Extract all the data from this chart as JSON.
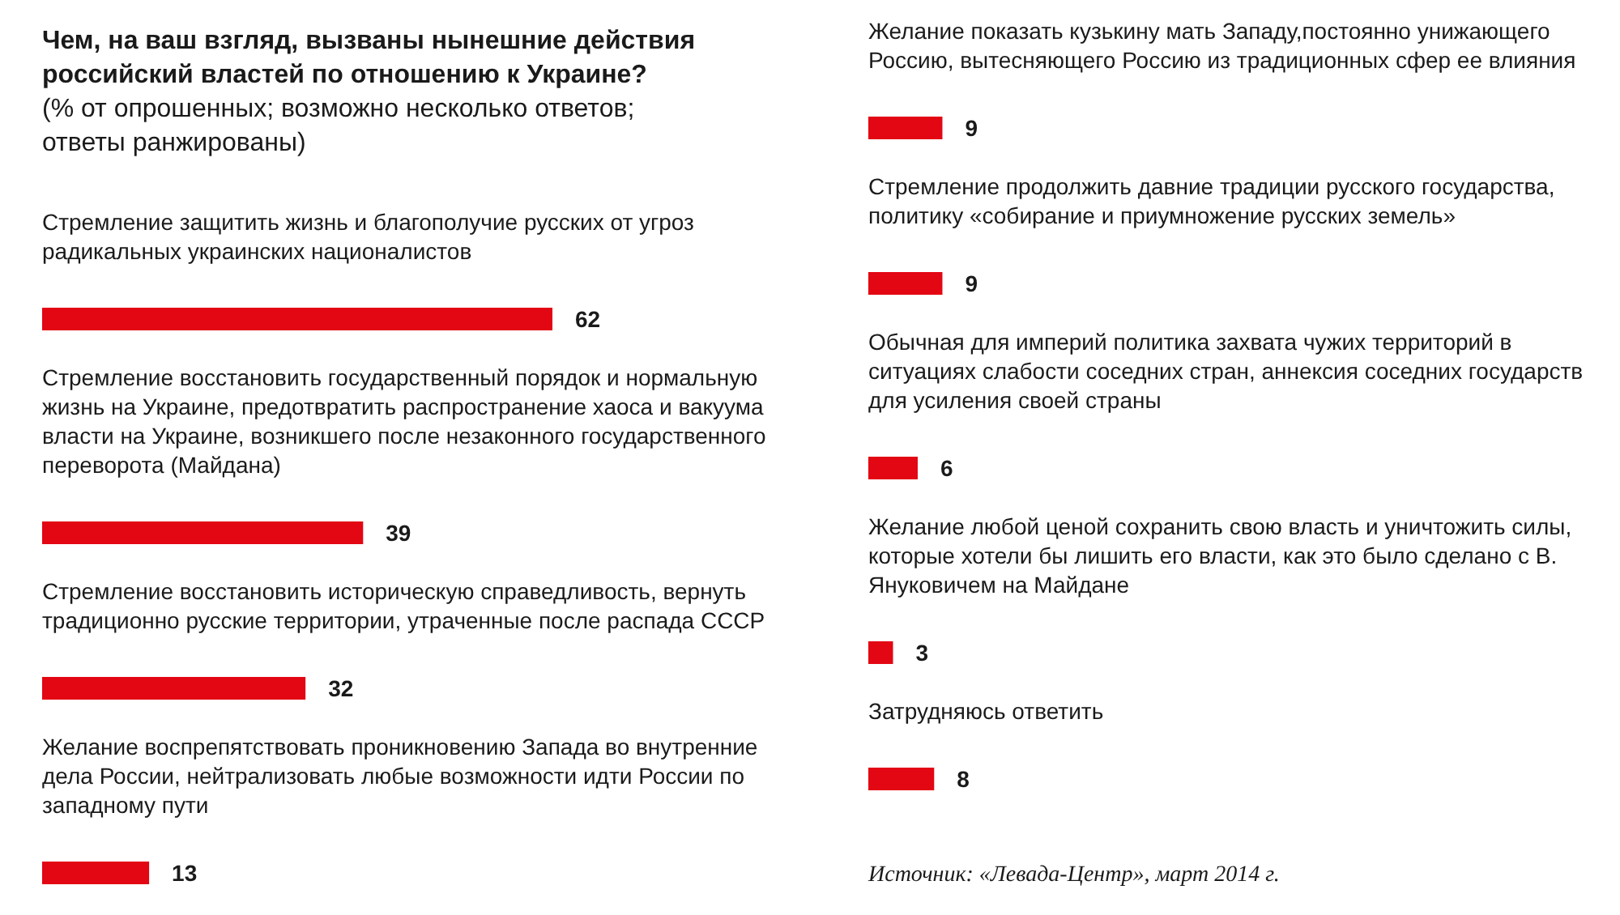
{
  "chart_data": [
    {
      "type": "bar",
      "orientation": "horizontal",
      "title": "Чем, на ваш взгляд, вызваны нынешние действия российский властей по отношению к Украине?",
      "subtitle": "(% от опрошенных; возможно несколько ответов; ответы ранжированы)",
      "categories": [
        "Стремление защитить жизнь и благополучие русских от угроз радикальных украинских националистов",
        "Стремление восстановить государственный порядок и нормальную жизнь на Украине, предотвратить распространение хаоса и вакуума власти на Украине, возникшего после незаконного государственного переворота (Майдана)",
        "Стремление восстановить историческую справедливость, вернуть традиционно русские территории, утраченные после распада СССР",
        "Желание воспрепятствовать проникновению Запада во внутренние дела России, нейтрализовать любые возможности идти России по западному пути"
      ],
      "values": [
        62,
        39,
        32,
        13
      ],
      "color": "#e30613",
      "data_labels": true
    },
    {
      "type": "bar",
      "orientation": "horizontal",
      "categories": [
        "Желание показать кузькину мать Западу,постоянно унижающего Россию, вытесняющего Россию из традиционных сфер ее влияния",
        "Стремление продолжить давние традиции русского государства, политику «собирание и приумножение русских земель»",
        "Обычная для империй политика захвата чужих территорий в ситуациях слабости соседних стран, аннексия соседних государств для усиления своей страны",
        "Желание любой ценой сохранить свою власть и уничтожить силы, которые хотели бы лишить его власти, как это было сделано с В. Януковичем на Майдане",
        "Затрудняюсь ответить"
      ],
      "values": [
        9,
        9,
        6,
        3,
        8
      ],
      "color": "#e30613",
      "data_labels": true,
      "annotations": [
        "Источник: «Левада-Центр», март 2014 г."
      ]
    }
  ]
}
